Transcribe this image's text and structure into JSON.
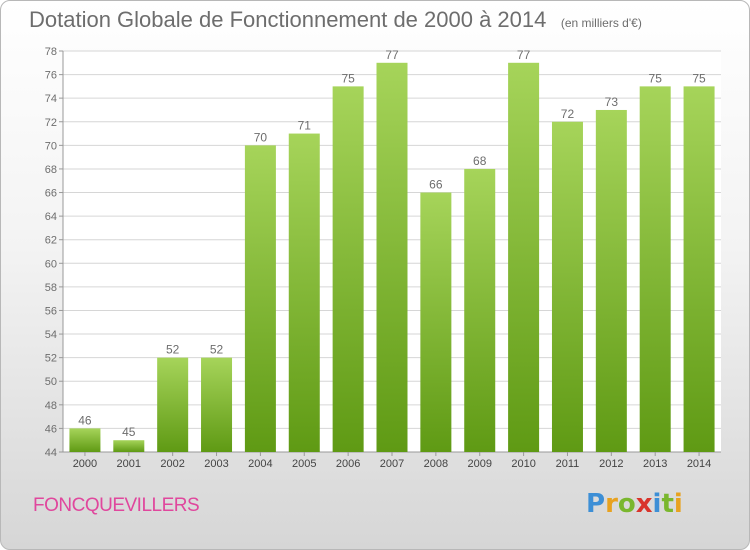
{
  "header": {
    "title": "Dotation Globale de Fonctionnement de 2000 à 2014",
    "unit": "(en milliers d'€)"
  },
  "footer": {
    "commune": "FONCQUEVILLERS",
    "logo_letters": [
      "P",
      "r",
      "o",
      "x",
      "i",
      "t",
      "i"
    ],
    "logo_colors": [
      "#3d8fd6",
      "#e8a21f",
      "#7ab72e",
      "#d9342b",
      "#3d8fd6",
      "#7ab72e",
      "#e8a21f"
    ]
  },
  "colors": {
    "bar_top": "#a6d45a",
    "bar_bottom": "#5f9a14",
    "text": "#6d6d6d",
    "grid": "#d6d6d6"
  },
  "chart_data": {
    "type": "bar",
    "categories": [
      "2000",
      "2001",
      "2002",
      "2003",
      "2004",
      "2005",
      "2006",
      "2007",
      "2008",
      "2009",
      "2010",
      "2011",
      "2012",
      "2013",
      "2014"
    ],
    "values": [
      46,
      45,
      52,
      52,
      70,
      71,
      75,
      77,
      66,
      68,
      77,
      72,
      73,
      75,
      75
    ],
    "title": "Dotation Globale de Fonctionnement de 2000 à 2014",
    "xlabel": "",
    "ylabel": "",
    "ylim": [
      44,
      78
    ],
    "yticks": [
      44,
      46,
      48,
      50,
      52,
      54,
      56,
      58,
      60,
      62,
      64,
      66,
      68,
      70,
      72,
      74,
      76,
      78
    ],
    "grid": true,
    "data_labels": true
  }
}
